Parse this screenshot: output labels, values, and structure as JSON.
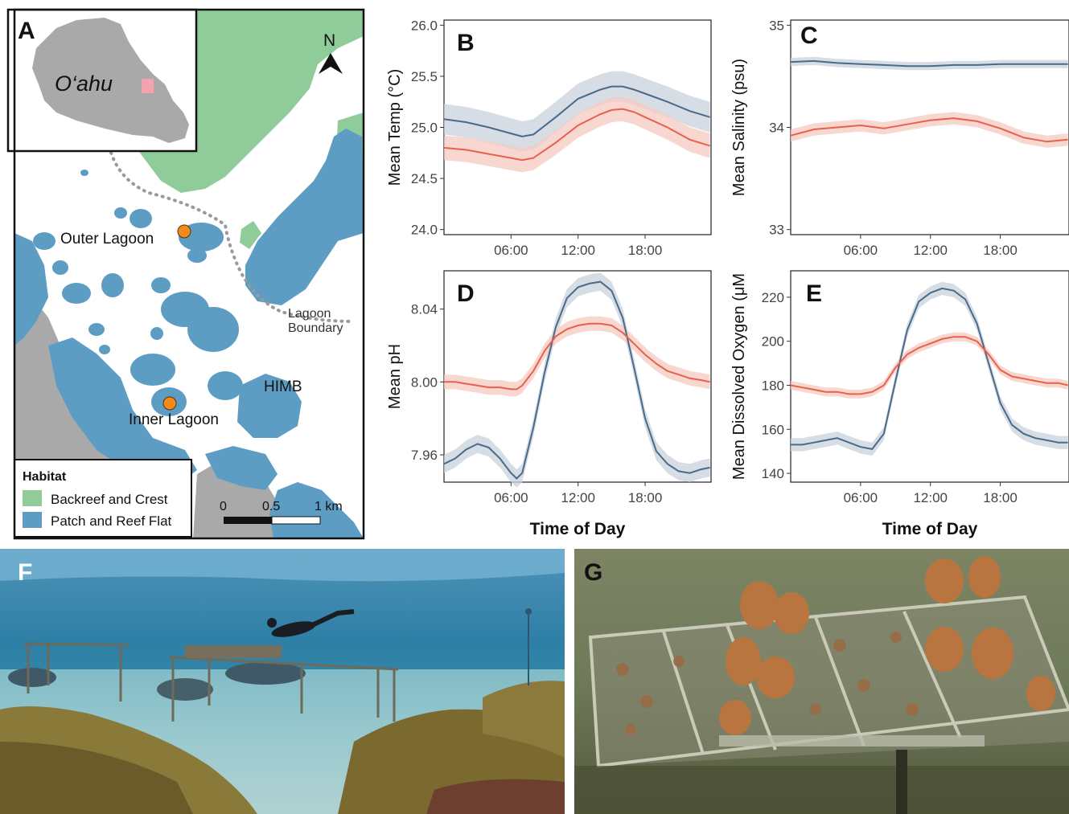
{
  "map": {
    "panel_label": "A",
    "inset_label": "O‘ahu",
    "north_label": "N",
    "sites": [
      "Outer Lagoon",
      "Inner Lagoon"
    ],
    "place_labels": {
      "himb": "HIMB",
      "boundary_line1": "Lagoon",
      "boundary_line2": "Boundary"
    },
    "legend": {
      "title": "Habitat",
      "items": [
        {
          "label": "Backreef and Crest",
          "color": "#8fcc9a"
        },
        {
          "label": "Patch and Reef Flat",
          "color": "#5d9dc4"
        }
      ]
    },
    "scale": {
      "labels": [
        "0",
        "0.5",
        "1 km"
      ]
    },
    "colors": {
      "land": "#a9a9a9",
      "backreef": "#8fcc9a",
      "patch": "#5d9dc4",
      "site": "#f28a1e",
      "inset_site": "#f2a3ad"
    }
  },
  "series_colors": {
    "outer": "#4a6a8a",
    "inner": "#e8604c",
    "outer_band": "#c9d2dc",
    "inner_band": "#f6c9c2"
  },
  "chart_data": [
    {
      "panel": "B",
      "type": "line",
      "ylabel": "Mean Temp (°C)",
      "xlabel": "",
      "xticks": [
        "06:00",
        "12:00",
        "18:00"
      ],
      "yticks": [
        "24.0",
        "24.5",
        "25.0",
        "25.5",
        "26.0"
      ],
      "xlim": [
        0,
        23.9
      ],
      "ylim": [
        23.95,
        26.05
      ],
      "x": [
        0,
        2,
        4,
        6,
        7,
        8,
        10,
        12,
        14,
        15,
        16,
        17,
        18,
        20,
        22,
        23.8
      ],
      "series": [
        {
          "values": [
            25.08,
            25.05,
            25.0,
            24.94,
            24.91,
            24.93,
            25.1,
            25.28,
            25.37,
            25.4,
            25.4,
            25.37,
            25.33,
            25.25,
            25.16,
            25.1
          ],
          "band": 0.15
        },
        {
          "values": [
            24.8,
            24.78,
            24.74,
            24.7,
            24.68,
            24.7,
            24.85,
            25.02,
            25.13,
            25.17,
            25.18,
            25.15,
            25.1,
            25.0,
            24.88,
            24.82
          ],
          "band": 0.12
        }
      ]
    },
    {
      "panel": "C",
      "type": "line",
      "ylabel": "Mean Salinity (psu)",
      "xlabel": "",
      "xticks": [
        "06:00",
        "12:00",
        "18:00"
      ],
      "yticks": [
        "33",
        "34",
        "35"
      ],
      "xlim": [
        0,
        23.9
      ],
      "ylim": [
        32.95,
        35.05
      ],
      "x": [
        0,
        2,
        4,
        6,
        8,
        10,
        12,
        14,
        16,
        18,
        20,
        22,
        23.8
      ],
      "series": [
        {
          "values": [
            34.64,
            34.65,
            34.63,
            34.62,
            34.61,
            34.6,
            34.6,
            34.61,
            34.61,
            34.62,
            34.62,
            34.62,
            34.62
          ],
          "band": 0.04
        },
        {
          "values": [
            33.92,
            33.98,
            34.0,
            34.02,
            33.99,
            34.03,
            34.07,
            34.09,
            34.06,
            33.99,
            33.9,
            33.86,
            33.88
          ],
          "band": 0.06
        }
      ]
    },
    {
      "panel": "D",
      "type": "line",
      "ylabel": "Mean pH",
      "xlabel": "Time of Day",
      "xticks": [
        "06:00",
        "12:00",
        "18:00"
      ],
      "yticks": [
        "7.96",
        "8.00",
        "8.04"
      ],
      "xlim": [
        0,
        23.9
      ],
      "ylim": [
        7.945,
        8.061
      ],
      "x": [
        0,
        1,
        2,
        3,
        4,
        5,
        6,
        6.5,
        7,
        8,
        9,
        10,
        11,
        12,
        13,
        14,
        15,
        16,
        17,
        18,
        19,
        20,
        21,
        22,
        23,
        23.8
      ],
      "series": [
        {
          "values": [
            7.955,
            7.958,
            7.963,
            7.966,
            7.964,
            7.958,
            7.95,
            7.947,
            7.95,
            7.975,
            8.005,
            8.03,
            8.046,
            8.052,
            8.054,
            8.055,
            8.05,
            8.035,
            8.008,
            7.98,
            7.962,
            7.955,
            7.951,
            7.95,
            7.952,
            7.953
          ],
          "band": 0.005
        },
        {
          "values": [
            8.0,
            8.0,
            7.999,
            7.998,
            7.997,
            7.997,
            7.996,
            7.996,
            7.998,
            8.006,
            8.017,
            8.025,
            8.029,
            8.031,
            8.032,
            8.032,
            8.031,
            8.027,
            8.021,
            8.015,
            8.01,
            8.006,
            8.004,
            8.002,
            8.001,
            8.0
          ],
          "band": 0.004
        }
      ]
    },
    {
      "panel": "E",
      "type": "line",
      "ylabel": "Mean Dissolved Oxygen (μM",
      "xlabel": "Time of Day",
      "xticks": [
        "06:00",
        "12:00",
        "18:00"
      ],
      "yticks": [
        "140",
        "160",
        "180",
        "200",
        "220"
      ],
      "xlim": [
        0,
        23.9
      ],
      "ylim": [
        136,
        232
      ],
      "x": [
        0,
        1,
        2,
        3,
        4,
        5,
        6,
        7,
        8,
        9,
        10,
        11,
        12,
        13,
        14,
        15,
        16,
        17,
        18,
        19,
        20,
        21,
        22,
        23,
        23.8
      ],
      "series": [
        {
          "values": [
            153,
            153,
            154,
            155,
            156,
            154,
            152,
            151,
            158,
            182,
            205,
            218,
            222,
            224,
            223,
            219,
            208,
            190,
            172,
            162,
            158,
            156,
            155,
            154,
            154
          ],
          "band": 3
        },
        {
          "values": [
            180,
            179,
            178,
            177,
            177,
            176,
            176,
            177,
            180,
            188,
            194,
            197,
            199,
            201,
            202,
            202,
            200,
            194,
            187,
            184,
            183,
            182,
            181,
            181,
            180
          ],
          "band": 2
        }
      ]
    }
  ],
  "photos": {
    "left_label": "F",
    "right_label": "G"
  }
}
